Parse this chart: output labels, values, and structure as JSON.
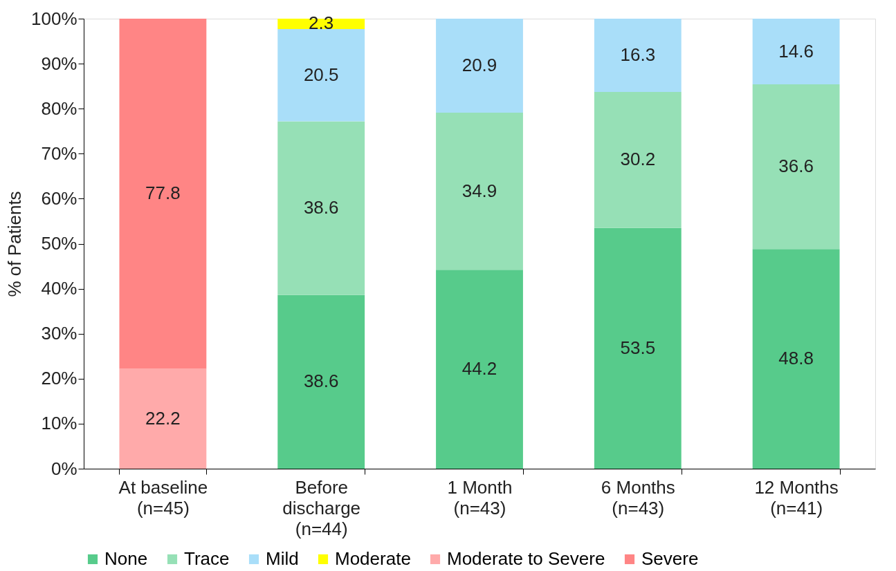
{
  "chart_data": {
    "type": "bar",
    "stacked": true,
    "ylabel": "% of Patients",
    "categories": [
      "At baseline\n(n=45)",
      "Before\ndischarge\n(n=44)",
      "1 Month\n(n=43)",
      "6 Months\n(n=43)",
      "12 Months\n(n=41)"
    ],
    "series": [
      {
        "name": "None",
        "color": "#57cb8b",
        "values": [
          null,
          38.6,
          44.2,
          53.5,
          48.8
        ]
      },
      {
        "name": "Trace",
        "color": "#96e0b6",
        "values": [
          null,
          38.6,
          34.9,
          30.2,
          36.6
        ]
      },
      {
        "name": "Mild",
        "color": "#a9def9",
        "values": [
          null,
          20.5,
          20.9,
          16.3,
          14.6
        ]
      },
      {
        "name": "Moderate",
        "color": "#ffff00",
        "values": [
          null,
          2.3,
          null,
          null,
          null
        ]
      },
      {
        "name": "Moderate to Severe",
        "color": "#ffaaaa",
        "values": [
          22.2,
          null,
          null,
          null,
          null
        ]
      },
      {
        "name": "Severe",
        "color": "#ff8585",
        "values": [
          77.8,
          null,
          null,
          null,
          null
        ]
      }
    ],
    "ylim": [
      0,
      100
    ],
    "yticks": [
      {
        "value": 0,
        "label": "0%"
      },
      {
        "value": 10,
        "label": "10%"
      },
      {
        "value": 20,
        "label": "20%"
      },
      {
        "value": 30,
        "label": "30%"
      },
      {
        "value": 40,
        "label": "40%"
      },
      {
        "value": 50,
        "label": "50%"
      },
      {
        "value": 60,
        "label": "60%"
      },
      {
        "value": 70,
        "label": "70%"
      },
      {
        "value": 80,
        "label": "80%"
      },
      {
        "value": 90,
        "label": "90%"
      },
      {
        "value": 100,
        "label": "100%"
      }
    ],
    "data_labels": true,
    "grid": false,
    "legend": "bottom"
  }
}
